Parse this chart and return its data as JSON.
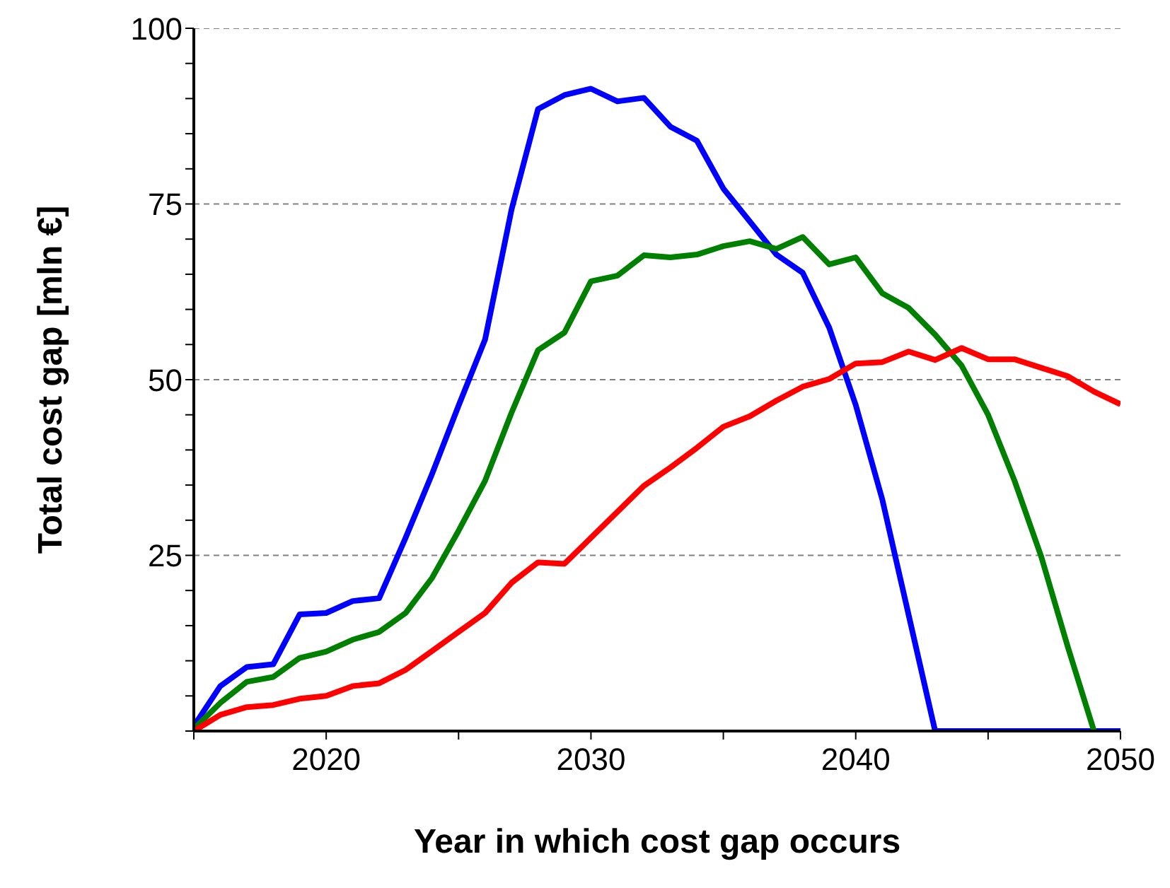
{
  "chart_data": {
    "type": "line",
    "xlabel": "Year in which cost gap occurs",
    "ylabel": "Total cost gap [mln €]",
    "x": [
      2015,
      2016,
      2017,
      2018,
      2019,
      2020,
      2021,
      2022,
      2023,
      2024,
      2025,
      2026,
      2027,
      2028,
      2029,
      2030,
      2031,
      2032,
      2033,
      2034,
      2035,
      2036,
      2037,
      2038,
      2039,
      2040,
      2041,
      2042,
      2043,
      2044,
      2045,
      2046,
      2047,
      2048,
      2049,
      2050
    ],
    "series": [
      {
        "color": "#0000ff",
        "values": [
          0.7,
          6.4,
          9.1,
          9.5,
          16.6,
          16.8,
          18.5,
          18.9,
          27.5,
          36.6,
          46.3,
          55.7,
          74.2,
          88.5,
          90.5,
          91.4,
          89.6,
          90.1,
          86,
          84,
          77.2,
          72.5,
          67.8,
          65.2,
          57.4,
          46.4,
          33,
          16.5,
          0,
          0,
          0,
          0,
          0,
          0,
          0,
          0
        ]
      },
      {
        "color": "#008000",
        "values": [
          0.3,
          4,
          7,
          7.7,
          10.4,
          11.3,
          13,
          14.1,
          16.8,
          21.8,
          28.5,
          35.6,
          45.3,
          54.2,
          56.7,
          64,
          64.8,
          67.7,
          67.4,
          67.8,
          69,
          69.7,
          68.6,
          70.3,
          66.4,
          67.4,
          62.3,
          60.2,
          56.4,
          52,
          45,
          35.6,
          24.9,
          12.1,
          0,
          null
        ]
      },
      {
        "color": "#ff0000",
        "values": [
          0,
          2.3,
          3.4,
          3.7,
          4.6,
          5,
          6.4,
          6.8,
          8.7,
          11.4,
          14.1,
          16.8,
          21.1,
          24,
          23.8,
          27.5,
          31.2,
          34.9,
          37.5,
          40.3,
          43.3,
          44.8,
          47,
          49,
          50.1,
          52.3,
          52.5,
          54,
          52.8,
          54.5,
          52.9,
          52.9,
          51.7,
          50.5,
          48.3,
          46.5
        ]
      }
    ],
    "xlim": [
      2015,
      2050
    ],
    "xticks": [
      {
        "value": 2015,
        "label": null
      },
      2020,
      {
        "value": 2025,
        "label": null
      },
      2030,
      {
        "value": 2035,
        "label": null
      },
      2040,
      {
        "value": 2045,
        "label": null
      },
      2050
    ],
    "ylim": [
      0,
      100
    ],
    "yticks": [
      {
        "value": 0,
        "label": null
      },
      {
        "value": 5,
        "label": null
      },
      {
        "value": 10,
        "label": null
      },
      {
        "value": 15,
        "label": null
      },
      {
        "value": 20,
        "label": null
      },
      25,
      {
        "value": 30,
        "label": null
      },
      {
        "value": 35,
        "label": null
      },
      {
        "value": 40,
        "label": null
      },
      {
        "value": 45,
        "label": null
      },
      50,
      {
        "value": 55,
        "label": null
      },
      {
        "value": 60,
        "label": null
      },
      {
        "value": 65,
        "label": null
      },
      {
        "value": 70,
        "label": null
      },
      75,
      {
        "value": 80,
        "label": null
      },
      {
        "value": 85,
        "label": null
      },
      {
        "value": 90,
        "label": null
      },
      {
        "value": 95,
        "label": null
      },
      100
    ],
    "grid": "y",
    "legend": false,
    "marker": "none",
    "line_style": "solid"
  }
}
